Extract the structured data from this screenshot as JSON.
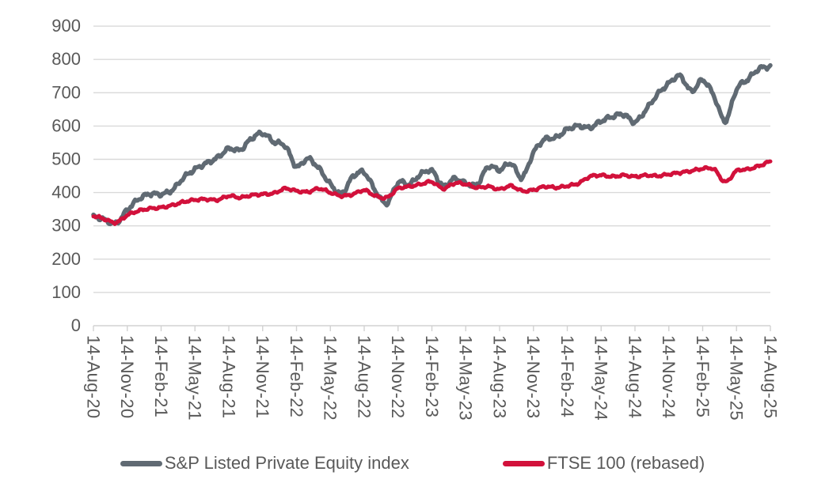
{
  "chart_data": {
    "type": "line",
    "title": "",
    "xlabel": "",
    "ylabel": "",
    "ylim": [
      0,
      900
    ],
    "y_ticks": [
      0,
      100,
      200,
      300,
      400,
      500,
      600,
      700,
      800,
      900
    ],
    "grid": "horizontal",
    "legend_position": "bottom",
    "x_tick_labels": [
      "14-Aug-20",
      "14-Nov-20",
      "14-Feb-21",
      "14-May-21",
      "14-Aug-21",
      "14-Nov-21",
      "14-Feb-22",
      "14-May-22",
      "14-Aug-22",
      "14-Nov-22",
      "14-Feb-23",
      "14-May-23",
      "14-Aug-23",
      "14-Nov-23",
      "14-Feb-24",
      "14-May-24",
      "14-Aug-24",
      "14-Nov-24",
      "14-Feb-25",
      "14-May-25",
      "14-Aug-25"
    ],
    "x": [
      "Aug-20",
      "Sep-20",
      "Oct-20",
      "Nov-20",
      "Dec-20",
      "Jan-21",
      "Feb-21",
      "Mar-21",
      "Apr-21",
      "May-21",
      "Jun-21",
      "Jul-21",
      "Aug-21",
      "Sep-21",
      "Oct-21",
      "Nov-21",
      "Dec-21",
      "Jan-22",
      "Feb-22",
      "Mar-22",
      "Apr-22",
      "May-22",
      "Jun-22",
      "Jul-22",
      "Aug-22",
      "Sep-22",
      "Oct-22",
      "Nov-22",
      "Dec-22",
      "Jan-23",
      "Feb-23",
      "Mar-23",
      "Apr-23",
      "May-23",
      "Jun-23",
      "Jul-23",
      "Aug-23",
      "Sep-23",
      "Oct-23",
      "Nov-23",
      "Dec-23",
      "Jan-24",
      "Feb-24",
      "Mar-24",
      "Apr-24",
      "May-24",
      "Jun-24",
      "Jul-24",
      "Aug-24",
      "Sep-24",
      "Oct-24",
      "Nov-24",
      "Dec-24",
      "Jan-25",
      "Feb-25",
      "Mar-25",
      "Apr-25",
      "May-25",
      "Jun-25",
      "Jul-25",
      "Aug-25"
    ],
    "series": [
      {
        "name": "S&P Listed Private Equity index",
        "color": "#606A73",
        "values": [
          328,
          318,
          308,
          348,
          380,
          396,
          395,
          408,
          445,
          470,
          488,
          505,
          532,
          528,
          562,
          578,
          552,
          540,
          478,
          502,
          472,
          425,
          398,
          448,
          460,
          405,
          368,
          430,
          425,
          455,
          465,
          420,
          442,
          428,
          425,
          478,
          468,
          488,
          445,
          520,
          560,
          565,
          590,
          600,
          595,
          615,
          628,
          635,
          612,
          650,
          695,
          728,
          750,
          705,
          738,
          690,
          615,
          710,
          740,
          772,
          778
        ]
      },
      {
        "name": "FTSE 100 (rebased)",
        "color": "#D2113B",
        "values": [
          330,
          320,
          310,
          332,
          345,
          352,
          355,
          362,
          372,
          378,
          380,
          378,
          390,
          385,
          392,
          395,
          398,
          412,
          405,
          402,
          412,
          400,
          390,
          395,
          407,
          390,
          385,
          412,
          418,
          425,
          432,
          412,
          428,
          425,
          415,
          418,
          410,
          420,
          405,
          408,
          418,
          415,
          420,
          428,
          448,
          452,
          448,
          452,
          448,
          452,
          450,
          455,
          460,
          465,
          472,
          470,
          432,
          465,
          470,
          480,
          493
        ]
      }
    ],
    "style": {
      "grid_color": "#D9D9D9",
      "axis_color": "#D2D2D2",
      "tick_label_color": "#595959"
    }
  }
}
